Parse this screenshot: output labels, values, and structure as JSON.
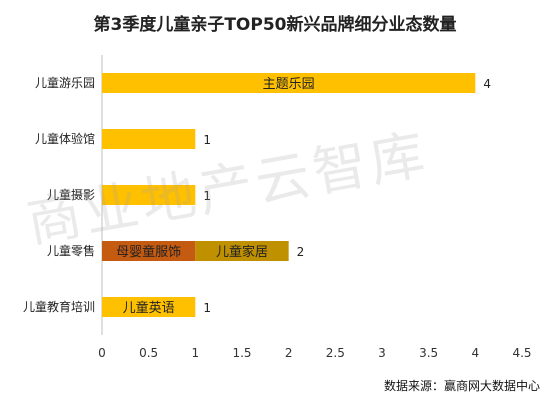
{
  "chart_data": {
    "type": "bar",
    "orientation": "horizontal",
    "stacked": true,
    "title": "第3季度儿童亲子TOP50新兴品牌细分业态数量",
    "categories": [
      "儿童游乐园",
      "儿童体验馆",
      "儿童摄影",
      "儿童零售",
      "儿童教育培训"
    ],
    "totals": [
      4,
      1,
      1,
      2,
      1
    ],
    "segments": [
      [
        {
          "label": "主题乐园",
          "value": 4,
          "color": "#FFC000"
        }
      ],
      [
        {
          "label": "",
          "value": 1,
          "color": "#FFC000"
        }
      ],
      [
        {
          "label": "",
          "value": 1,
          "color": "#FFC000"
        }
      ],
      [
        {
          "label": "母婴童服饰",
          "value": 1,
          "color": "#C55A11"
        },
        {
          "label": "儿童家居",
          "value": 1,
          "color": "#BF9000"
        }
      ],
      [
        {
          "label": "儿童英语",
          "value": 1,
          "color": "#FFC000"
        }
      ]
    ],
    "xlim": [
      0,
      4.5
    ],
    "xticks": [
      "0",
      "0.5",
      "1",
      "1.5",
      "2",
      "2.5",
      "3",
      "3.5",
      "4",
      "4.5"
    ],
    "legend": "none",
    "grid": false
  },
  "source_text": "数据来源：赢商网大数据中心",
  "watermark_text": "商业地产云智库"
}
